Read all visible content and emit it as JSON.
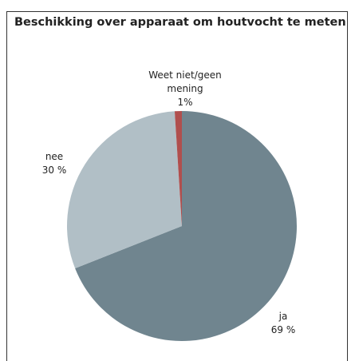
{
  "chart_data": {
    "type": "pie",
    "title": "Beschikking over apparaat om houtvocht te meten",
    "categories": [
      "ja",
      "nee",
      "Weet niet/geen mening"
    ],
    "values": [
      69,
      30,
      1
    ],
    "value_labels": [
      "69 %",
      "30 %",
      "1%"
    ],
    "colors": [
      "#70858f",
      "#b1bfc6",
      "#b04f4e"
    ]
  }
}
